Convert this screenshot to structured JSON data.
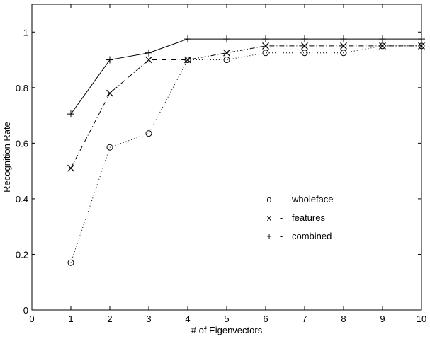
{
  "chart_data": {
    "type": "line",
    "title": "",
    "xlabel": "# of Eigenvectors",
    "ylabel": "Recognition Rate",
    "xlim": [
      0,
      10
    ],
    "ylim": [
      0,
      1.1
    ],
    "xticks": [
      0,
      1,
      2,
      3,
      4,
      5,
      6,
      7,
      8,
      9,
      10
    ],
    "yticks": [
      0,
      0.2,
      0.4,
      0.6,
      0.8,
      1
    ],
    "ytick_labels": [
      "0",
      "0.2",
      "0.4",
      "0.6",
      "0.8",
      "1"
    ],
    "grid": false,
    "legend_placement": "center-right",
    "x": [
      1,
      2,
      3,
      4,
      5,
      6,
      7,
      8,
      9,
      10
    ],
    "series": [
      {
        "name": "wholeface",
        "symbol": "o",
        "marker": "circle",
        "line_style": "dotted",
        "values": [
          0.17,
          0.585,
          0.635,
          0.9,
          0.9,
          0.925,
          0.925,
          0.925,
          0.95,
          0.95
        ]
      },
      {
        "name": "features",
        "symbol": "x",
        "marker": "cross",
        "line_style": "dashdot",
        "values": [
          0.51,
          0.78,
          0.9,
          0.9,
          0.925,
          0.95,
          0.95,
          0.95,
          0.95,
          0.95
        ]
      },
      {
        "name": "combined",
        "symbol": "+",
        "marker": "plus",
        "line_style": "solid",
        "values": [
          0.705,
          0.9,
          0.925,
          0.975,
          0.975,
          0.975,
          0.975,
          0.975,
          0.975,
          0.975
        ]
      }
    ],
    "legend_dash": "-",
    "colors": {
      "line": "#000000",
      "background": "#ffffff"
    }
  }
}
